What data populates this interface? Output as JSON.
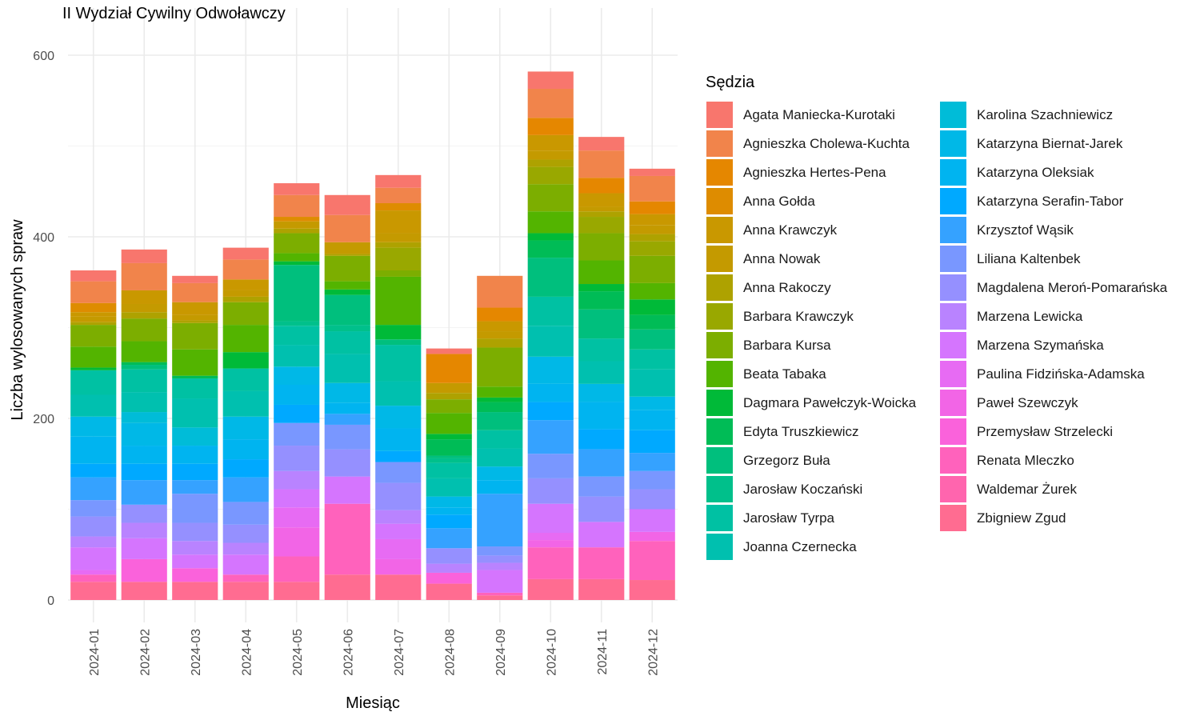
{
  "chart_data": {
    "type": "bar",
    "stacked": true,
    "title": "II Wydział Cywilny Odwoławczy",
    "xlabel": "Miesiąc",
    "ylabel": "Liczba wylosowanych spraw",
    "ylim": [
      -25,
      625
    ],
    "yticks": [
      0,
      200,
      400,
      600
    ],
    "grid": true,
    "legend_title": "Sędzia",
    "legend_position": "right",
    "categories": [
      "2024-01",
      "2024-02",
      "2024-03",
      "2024-04",
      "2024-05",
      "2024-06",
      "2024-07",
      "2024-08",
      "2024-09",
      "2024-10",
      "2024-11",
      "2024-12"
    ],
    "series": [
      {
        "name": "Agata Maniecka-Kurotaki",
        "color": "#F8766D",
        "values": [
          12,
          15,
          8,
          13,
          13,
          22,
          14,
          6,
          0,
          19,
          15,
          8
        ]
      },
      {
        "name": "Agnieszka Cholewa-Kuchta",
        "color": "#F1844B",
        "values": [
          24,
          30,
          21,
          22,
          24,
          30,
          17,
          0,
          35,
          32,
          30,
          28
        ]
      },
      {
        "name": "Agnieszka Hertes-Pena",
        "color": "#E58700",
        "values": [
          0,
          0,
          0,
          0,
          0,
          0,
          0,
          32,
          15,
          19,
          17,
          14
        ]
      },
      {
        "name": "Anna Gołda",
        "color": "#DE8C00",
        "values": [
          10,
          0,
          0,
          0,
          5,
          0,
          8,
          0,
          0,
          0,
          0,
          0
        ]
      },
      {
        "name": "Anna Krawczyk",
        "color": "#C99800",
        "values": [
          5,
          15,
          14,
          12,
          0,
          0,
          25,
          0,
          11,
          17,
          15,
          12
        ]
      },
      {
        "name": "Anna Nowak",
        "color": "#C49A00",
        "values": [
          6,
          9,
          6,
          7,
          8,
          13,
          10,
          11,
          8,
          10,
          5,
          10
        ]
      },
      {
        "name": "Anna Rakoczy",
        "color": "#AEA200",
        "values": [
          3,
          7,
          3,
          6,
          5,
          2,
          6,
          7,
          10,
          8,
          6,
          8
        ]
      },
      {
        "name": "Barbara Krawczyk",
        "color": "#99A800",
        "values": [
          0,
          0,
          0,
          0,
          0,
          0,
          25,
          0,
          0,
          19,
          18,
          16
        ]
      },
      {
        "name": "Barbara Kursa",
        "color": "#7CAE00",
        "values": [
          24,
          25,
          29,
          25,
          22,
          28,
          7,
          15,
          43,
          30,
          30,
          30
        ]
      },
      {
        "name": "Beata Tabaka",
        "color": "#53B400",
        "values": [
          23,
          23,
          29,
          30,
          9,
          9,
          53,
          23,
          12,
          24,
          26,
          18
        ]
      },
      {
        "name": "Dagmara Pawełczyk-Woicka",
        "color": "#00BA38",
        "values": [
          3,
          0,
          0,
          18,
          4,
          6,
          16,
          6,
          5,
          8,
          8,
          17
        ]
      },
      {
        "name": "Edyta Truszkiewicz",
        "color": "#00BC56",
        "values": [
          0,
          3,
          3,
          0,
          0,
          0,
          0,
          18,
          11,
          19,
          20,
          16
        ]
      },
      {
        "name": "Grzegorz Buła",
        "color": "#00BF7D",
        "values": [
          0,
          5,
          0,
          0,
          62,
          33,
          6,
          3,
          20,
          43,
          32,
          22
        ]
      },
      {
        "name": "Jarosław Koczański",
        "color": "#00C08B",
        "values": [
          0,
          0,
          0,
          0,
          5,
          7,
          0,
          5,
          0,
          0,
          0,
          0
        ]
      },
      {
        "name": "Jarosław Tyrpa",
        "color": "#00C1A3",
        "values": [
          27,
          25,
          22,
          25,
          21,
          25,
          40,
          17,
          20,
          32,
          25,
          22
        ]
      },
      {
        "name": "Joanna Czernecka",
        "color": "#00C0AF",
        "values": [
          24,
          22,
          32,
          28,
          24,
          32,
          27,
          20,
          20,
          34,
          25,
          30
        ]
      },
      {
        "name": "Karolina Szachniewicz",
        "color": "#00BCD8",
        "values": [
          0,
          12,
          20,
          0,
          0,
          0,
          0,
          0,
          0,
          0,
          0,
          0
        ]
      },
      {
        "name": "Katarzyna Biernat-Jarek",
        "color": "#00B8E7",
        "values": [
          22,
          25,
          0,
          25,
          20,
          22,
          25,
          12,
          15,
          30,
          20,
          15
        ]
      },
      {
        "name": "Katarzyna Oleksiak",
        "color": "#00B4F0",
        "values": [
          30,
          20,
          20,
          22,
          22,
          12,
          25,
          8,
          15,
          20,
          30,
          22
        ]
      },
      {
        "name": "Katarzyna Serafin-Tabor",
        "color": "#00A9FF",
        "values": [
          15,
          18,
          18,
          20,
          20,
          0,
          12,
          15,
          0,
          20,
          22,
          25
        ]
      },
      {
        "name": "Krzysztof Wąsik",
        "color": "#35A2FF",
        "values": [
          25,
          27,
          15,
          27,
          0,
          12,
          0,
          22,
          58,
          37,
          30,
          20
        ]
      },
      {
        "name": "Liliana Kaltenbek",
        "color": "#7997FF",
        "values": [
          18,
          0,
          32,
          25,
          25,
          27,
          23,
          0,
          10,
          27,
          22,
          20
        ]
      },
      {
        "name": "Magdalena Meroń-Pomarańska",
        "color": "#9590FF",
        "values": [
          22,
          20,
          20,
          20,
          28,
          30,
          30,
          17,
          8,
          28,
          28,
          22
        ]
      },
      {
        "name": "Marzena Lewicka",
        "color": "#B983FF",
        "values": [
          12,
          17,
          15,
          13,
          20,
          0,
          15,
          10,
          8,
          0,
          0,
          0
        ]
      },
      {
        "name": "Marzena Szymańska",
        "color": "#D575FE",
        "values": [
          25,
          23,
          15,
          22,
          20,
          30,
          17,
          0,
          25,
          32,
          28,
          25
        ]
      },
      {
        "name": "Paulina Fidzińska-Adamska",
        "color": "#E76BF3",
        "values": [
          5,
          0,
          0,
          0,
          22,
          0,
          22,
          0,
          0,
          8,
          0,
          0
        ]
      },
      {
        "name": "Paweł Szewczyk",
        "color": "#F265E6",
        "values": [
          0,
          0,
          0,
          0,
          32,
          0,
          17,
          0,
          0,
          8,
          0,
          10
        ]
      },
      {
        "name": "Przemysław Strzelecki",
        "color": "#FA62DB",
        "values": [
          0,
          25,
          15,
          0,
          0,
          0,
          0,
          12,
          0,
          0,
          0,
          0
        ]
      },
      {
        "name": "Renata Mleczko",
        "color": "#FF62BC",
        "values": [
          8,
          0,
          0,
          8,
          28,
          78,
          0,
          0,
          3,
          35,
          35,
          43
        ]
      },
      {
        "name": "Waldemar Żurek",
        "color": "#FF65AE",
        "values": [
          0,
          0,
          0,
          0,
          0,
          0,
          0,
          0,
          0,
          0,
          0,
          0
        ]
      },
      {
        "name": "Zbigniew Zgud",
        "color": "#FF6C91",
        "values": [
          20,
          20,
          20,
          20,
          20,
          28,
          28,
          18,
          5,
          23,
          23,
          22
        ]
      }
    ]
  }
}
